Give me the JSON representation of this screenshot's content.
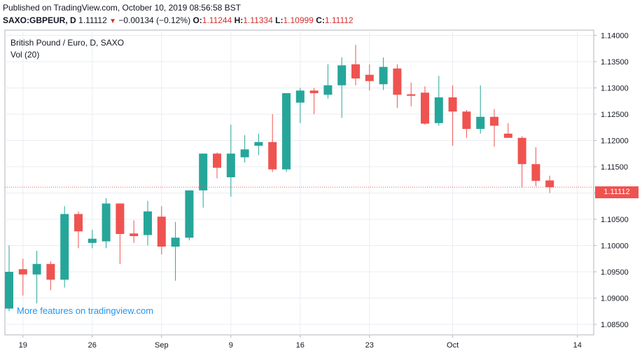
{
  "header": {
    "published": "Published on TradingView.com, October 10, 2019 08:56:58 BST",
    "symbol": "SAXO:GBPEUR, D",
    "last": "1.11112",
    "change": "−0.00134 (−0.12%)",
    "o_label": "O:",
    "o_value": "1.11244",
    "h_label": "H:",
    "h_value": "1.11334",
    "l_label": "L:",
    "l_value": "1.10999",
    "c_label": "C:",
    "c_value": "1.11112"
  },
  "legend": {
    "title": "British Pound / Euro, D, SAXO",
    "vol": "Vol (20)"
  },
  "promo": "More features on tradingview.com",
  "price_tag": "1.11112",
  "colors": {
    "up": "#26a69a",
    "down": "#ef5350",
    "grid": "#e9ecf2",
    "axis": "#131722"
  },
  "chart_data": {
    "type": "candlestick",
    "ylim": [
      1.083,
      1.141
    ],
    "y_ticks": [
      "1.14000",
      "1.13500",
      "1.13000",
      "1.12500",
      "1.12000",
      "1.11500",
      "1.11000",
      "1.10500",
      "1.10000",
      "1.09500",
      "1.09000",
      "1.08500"
    ],
    "x_ticks": [
      "19",
      "26",
      "Sep",
      "9",
      "16",
      "23",
      "Oct",
      "14"
    ],
    "last_price": 1.11112,
    "candles": [
      {
        "o": 1.088,
        "h": 1.1,
        "l": 1.0875,
        "c": 1.095
      },
      {
        "o": 1.0955,
        "h": 1.0975,
        "l": 1.0905,
        "c": 1.0945
      },
      {
        "o": 1.0945,
        "h": 1.099,
        "l": 1.089,
        "c": 1.0965
      },
      {
        "o": 1.0965,
        "h": 1.097,
        "l": 1.0915,
        "c": 1.0935
      },
      {
        "o": 1.0935,
        "h": 1.1075,
        "l": 1.092,
        "c": 1.106
      },
      {
        "o": 1.106,
        "h": 1.1065,
        "l": 1.0995,
        "c": 1.1027
      },
      {
        "o": 1.1005,
        "h": 1.103,
        "l": 1.0995,
        "c": 1.1013
      },
      {
        "o": 1.1008,
        "h": 1.109,
        "l": 1.0995,
        "c": 1.108
      },
      {
        "o": 1.108,
        "h": 1.108,
        "l": 1.0965,
        "c": 1.1022
      },
      {
        "o": 1.1023,
        "h": 1.1048,
        "l": 1.1005,
        "c": 1.1018
      },
      {
        "o": 1.102,
        "h": 1.1085,
        "l": 1.1,
        "c": 1.1065
      },
      {
        "o": 1.1055,
        "h": 1.1075,
        "l": 1.0983,
        "c": 1.0998
      },
      {
        "o": 1.0998,
        "h": 1.1045,
        "l": 1.0933,
        "c": 1.1015
      },
      {
        "o": 1.1015,
        "h": 1.1105,
        "l": 1.101,
        "c": 1.1105
      },
      {
        "o": 1.1105,
        "h": 1.1175,
        "l": 1.1072,
        "c": 1.1175
      },
      {
        "o": 1.1175,
        "h": 1.1177,
        "l": 1.1128,
        "c": 1.1148
      },
      {
        "o": 1.113,
        "h": 1.123,
        "l": 1.1093,
        "c": 1.1175
      },
      {
        "o": 1.1168,
        "h": 1.121,
        "l": 1.1158,
        "c": 1.1183
      },
      {
        "o": 1.119,
        "h": 1.1213,
        "l": 1.1172,
        "c": 1.1197
      },
      {
        "o": 1.1197,
        "h": 1.125,
        "l": 1.114,
        "c": 1.1145
      },
      {
        "o": 1.1145,
        "h": 1.129,
        "l": 1.114,
        "c": 1.129
      },
      {
        "o": 1.1272,
        "h": 1.13,
        "l": 1.1233,
        "c": 1.1295
      },
      {
        "o": 1.1295,
        "h": 1.13,
        "l": 1.125,
        "c": 1.129
      },
      {
        "o": 1.1287,
        "h": 1.1345,
        "l": 1.128,
        "c": 1.1305
      },
      {
        "o": 1.1305,
        "h": 1.1358,
        "l": 1.1243,
        "c": 1.1343
      },
      {
        "o": 1.1345,
        "h": 1.1382,
        "l": 1.1305,
        "c": 1.1318
      },
      {
        "o": 1.1325,
        "h": 1.1345,
        "l": 1.1295,
        "c": 1.1313
      },
      {
        "o": 1.1307,
        "h": 1.1358,
        "l": 1.1296,
        "c": 1.134
      },
      {
        "o": 1.1337,
        "h": 1.1345,
        "l": 1.1262,
        "c": 1.1287
      },
      {
        "o": 1.1288,
        "h": 1.131,
        "l": 1.1265,
        "c": 1.1285
      },
      {
        "o": 1.1291,
        "h": 1.1303,
        "l": 1.123,
        "c": 1.1232
      },
      {
        "o": 1.1233,
        "h": 1.1323,
        "l": 1.1228,
        "c": 1.1282
      },
      {
        "o": 1.1282,
        "h": 1.1305,
        "l": 1.119,
        "c": 1.1255
      },
      {
        "o": 1.1255,
        "h": 1.1258,
        "l": 1.1205,
        "c": 1.1222
      },
      {
        "o": 1.1222,
        "h": 1.1305,
        "l": 1.1213,
        "c": 1.1245
      },
      {
        "o": 1.1245,
        "h": 1.126,
        "l": 1.1188,
        "c": 1.1228
      },
      {
        "o": 1.1213,
        "h": 1.1233,
        "l": 1.1205,
        "c": 1.1205
      },
      {
        "o": 1.1205,
        "h": 1.1208,
        "l": 1.111,
        "c": 1.1155
      },
      {
        "o": 1.1155,
        "h": 1.1187,
        "l": 1.1113,
        "c": 1.1123
      },
      {
        "o": 1.1124,
        "h": 1.1133,
        "l": 1.11,
        "c": 1.1111
      }
    ]
  }
}
